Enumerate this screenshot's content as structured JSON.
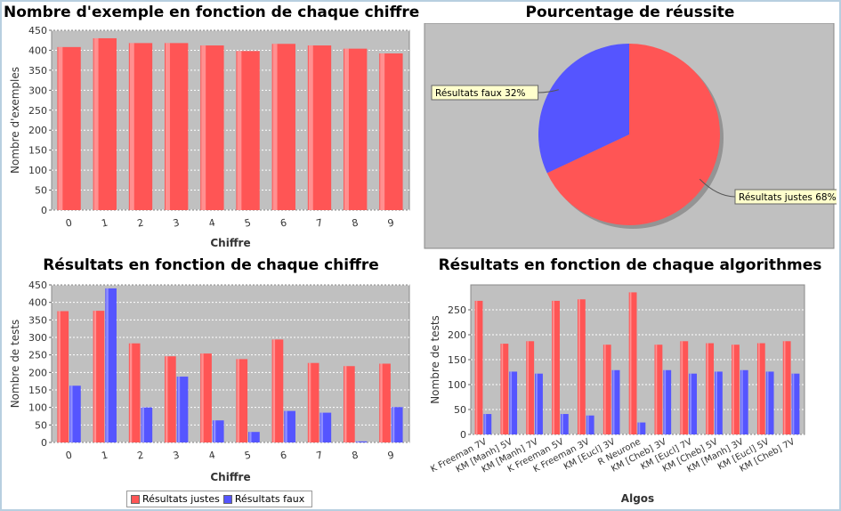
{
  "colors": {
    "justes": "#ff5555",
    "faux": "#5555ff",
    "plot_bg": "#c0c0c0",
    "pie_bg": "#c0c0c0"
  },
  "legend": {
    "justes": "Résultats justes",
    "faux": "Résultats faux"
  },
  "chart_data": [
    {
      "type": "bar",
      "title": "Nombre d'exemple en fonction de chaque chiffre",
      "xlabel": "Chiffre",
      "ylabel": "Nombre d'exemples",
      "ylim": [
        0,
        450
      ],
      "yticks": [
        0,
        50,
        100,
        150,
        200,
        250,
        300,
        350,
        400,
        450
      ],
      "grid": true,
      "categories": [
        "0",
        "1",
        "2",
        "3",
        "4",
        "5",
        "6",
        "7",
        "8",
        "9"
      ],
      "series": [
        {
          "values": [
            408,
            430,
            418,
            418,
            412,
            398,
            416,
            412,
            404,
            392
          ]
        }
      ]
    },
    {
      "type": "pie",
      "title": "Pourcentage de réussite",
      "slices": [
        {
          "label": "Résultats justes 68%",
          "name": "Résultats justes",
          "value": 68
        },
        {
          "label": "Résultats faux 32%",
          "name": "Résultats faux",
          "value": 32
        }
      ]
    },
    {
      "type": "bar",
      "title": "Résultats en fonction de chaque chiffre",
      "xlabel": "Chiffre",
      "ylabel": "Nombre de tests",
      "ylim": [
        0,
        450
      ],
      "yticks": [
        0,
        50,
        100,
        150,
        200,
        250,
        300,
        350,
        400,
        450
      ],
      "grid": true,
      "legend": "bottom",
      "categories": [
        "0",
        "1",
        "2",
        "3",
        "4",
        "5",
        "6",
        "7",
        "8",
        "9"
      ],
      "series": [
        {
          "name": "Résultats justes",
          "values": [
            375,
            376,
            283,
            246,
            254,
            238,
            294,
            227,
            218,
            225
          ]
        },
        {
          "name": "Résultats faux",
          "values": [
            162,
            440,
            100,
            188,
            63,
            30,
            90,
            85,
            3,
            101
          ]
        }
      ]
    },
    {
      "type": "bar",
      "title": "Résultats en fonction de chaque algorithmes",
      "xlabel": "Algos",
      "ylabel": "Nombre de tests",
      "ylim": [
        0,
        300
      ],
      "yticks": [
        0,
        50,
        100,
        150,
        200,
        250
      ],
      "grid": true,
      "categories": [
        "K Freeman 7V",
        "KM [Manh] 5V",
        "KM [Manh] 7V",
        "K Freeman 5V",
        "K Freeman 3V",
        "KM [Eucl] 3V",
        "R Neurone",
        "KM [Cheb] 3V",
        "KM [Eucl] 7V",
        "KM [Cheb] 5V",
        "KM [Manh] 3V",
        "KM [Eucl] 5V",
        "KM [Cheb] 7V"
      ],
      "series": [
        {
          "name": "Résultats justes",
          "values": [
            268,
            182,
            187,
            268,
            271,
            180,
            285,
            180,
            187,
            183,
            180,
            183,
            187
          ]
        },
        {
          "name": "Résultats faux",
          "values": [
            41,
            126,
            122,
            41,
            38,
            129,
            24,
            129,
            122,
            126,
            129,
            126,
            122
          ]
        }
      ]
    }
  ]
}
